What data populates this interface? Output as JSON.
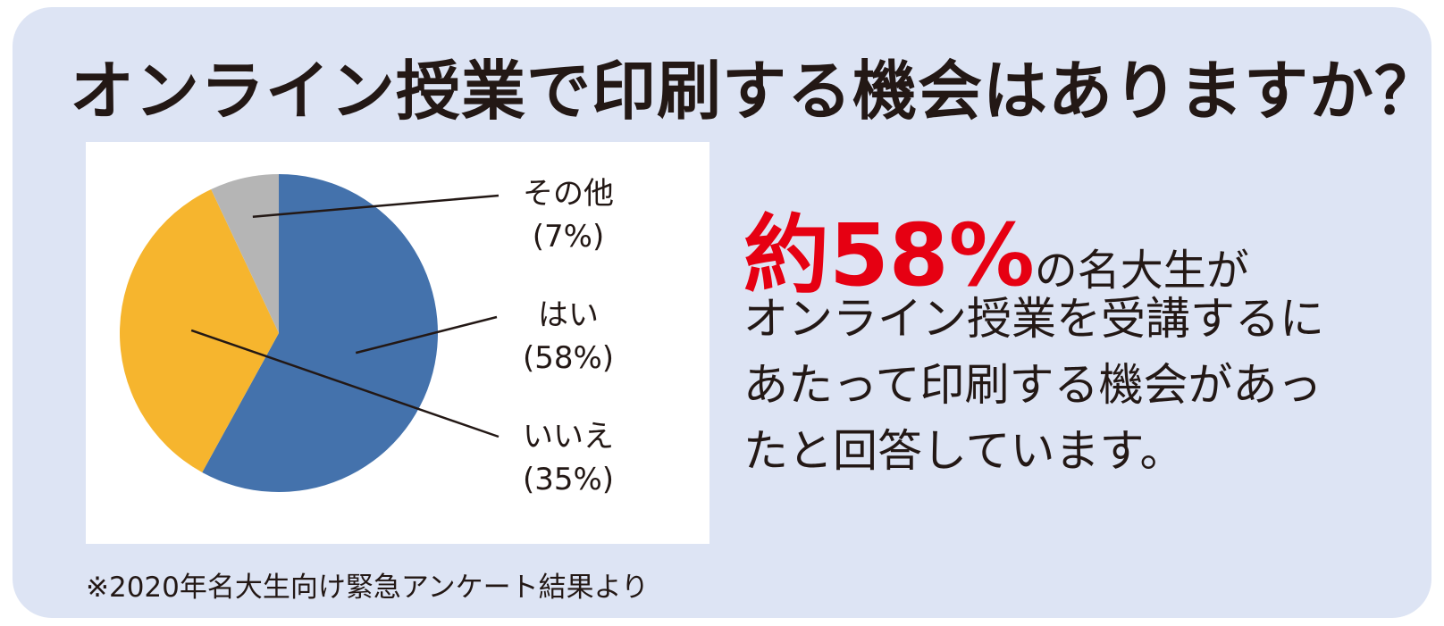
{
  "title": "オンライン授業で印刷する機会はありますか？",
  "note": "※2020年名大生向け緊急アンケート結果より",
  "summary": {
    "highlight": "約58%",
    "line1_rest": "の名大生が",
    "lines": [
      "オンライン授業を受講するに",
      "あたって印刷する機会があっ",
      "たと回答しています。"
    ]
  },
  "colors": {
    "yes": "#4472ac",
    "no": "#f6b52e",
    "other": "#b5b5b5",
    "highlight": "#e60012"
  },
  "chart_data": {
    "type": "pie",
    "slices": [
      {
        "label": "はい",
        "pct_label": "(58%)",
        "value": 58
      },
      {
        "label": "いいえ",
        "pct_label": "(35%)",
        "value": 35
      },
      {
        "label": "その他",
        "pct_label": "(7%)",
        "value": 7
      }
    ]
  }
}
